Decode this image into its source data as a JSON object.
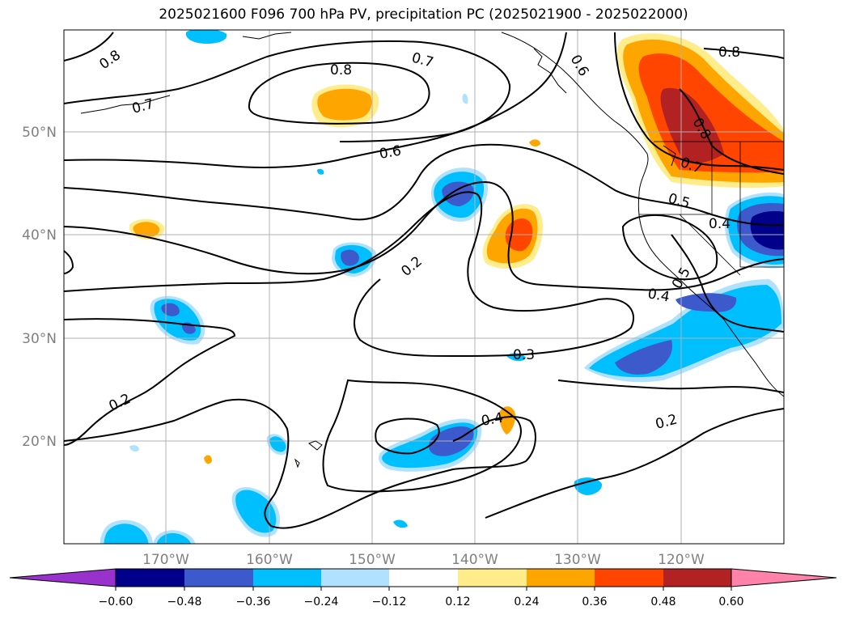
{
  "title": "2025021600 F096 700 hPa PV, precipitation PC (2025021900 - 2025022000)",
  "map": {
    "lat_ticks": [
      "50°N",
      "40°N",
      "30°N",
      "20°N"
    ],
    "lon_ticks": [
      "170°W",
      "160°W",
      "150°W",
      "140°W",
      "130°W",
      "120°W"
    ],
    "contour_labels": [
      "0.8",
      "0.7",
      "0.8",
      "0.7",
      "0.6",
      "0.8",
      "0.6",
      "0.8",
      "0.7",
      "0.5",
      "0.4",
      "0.5",
      "0.4",
      "0.2",
      "0.3",
      "0.2",
      "0.4",
      "0.2"
    ],
    "colors": {
      "n060": "#9932cc",
      "n048": "#00008b",
      "n036": "#3d5acd",
      "n024": "#00bfff",
      "n012": "#b0e2ff",
      "zero": "#ffffff",
      "p012": "#ffec8b",
      "p024": "#ffa500",
      "p036": "#ff4500",
      "p048": "#b22222",
      "p060": "#ff82ab"
    }
  },
  "colorbar": {
    "tick_labels": [
      "−0.60",
      "−0.48",
      "−0.36",
      "−0.24",
      "−0.12",
      "0.12",
      "0.24",
      "0.36",
      "0.48",
      "0.60"
    ],
    "levels": [
      -0.6,
      -0.48,
      -0.36,
      -0.24,
      -0.12,
      0.12,
      0.24,
      0.36,
      0.48,
      0.6
    ]
  }
}
